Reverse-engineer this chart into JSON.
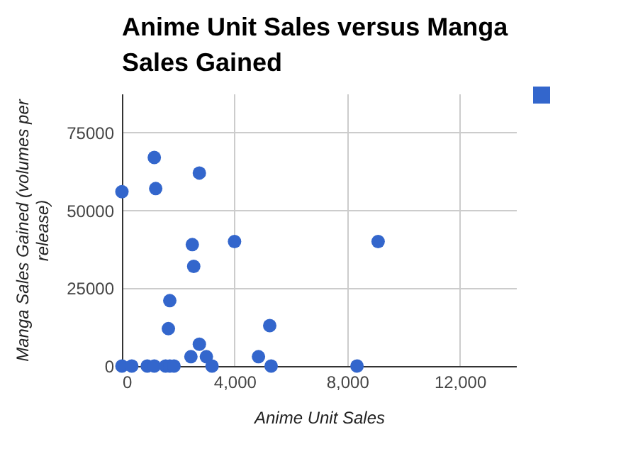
{
  "chart_data": {
    "type": "scatter",
    "title": "Anime Unit Sales versus Manga Sales Gained",
    "xlabel": "Anime Unit Sales",
    "ylabel": "Manga Sales Gained (volumes per release)",
    "x": [
      0,
      1150,
      1200,
      2750,
      2500,
      2550,
      4000,
      1700,
      1650,
      5250,
      2750,
      2450,
      3000,
      4850,
      3200,
      5300,
      0,
      350,
      900,
      1150,
      1550,
      1700,
      1850,
      9100,
      8350
    ],
    "series": [
      {
        "color": "#3366cc",
        "values": [
          56000,
          67000,
          57000,
          62000,
          39000,
          32000,
          40000,
          21000,
          12000,
          13000,
          7000,
          3000,
          3000,
          3000,
          0,
          0,
          0,
          0,
          0,
          0,
          0,
          0,
          0,
          40000,
          0
        ]
      }
    ],
    "xlim": [
      0,
      14000
    ],
    "xticks": [
      0,
      {
        "value": 4000,
        "label": "4,000"
      },
      {
        "value": 8000,
        "label": "8,000"
      },
      {
        "value": 12000,
        "label": "12,000"
      }
    ],
    "ylim": [
      0,
      87500
    ],
    "yticks": [
      0,
      25000,
      50000,
      75000
    ],
    "grid": true,
    "marker": "circle"
  }
}
